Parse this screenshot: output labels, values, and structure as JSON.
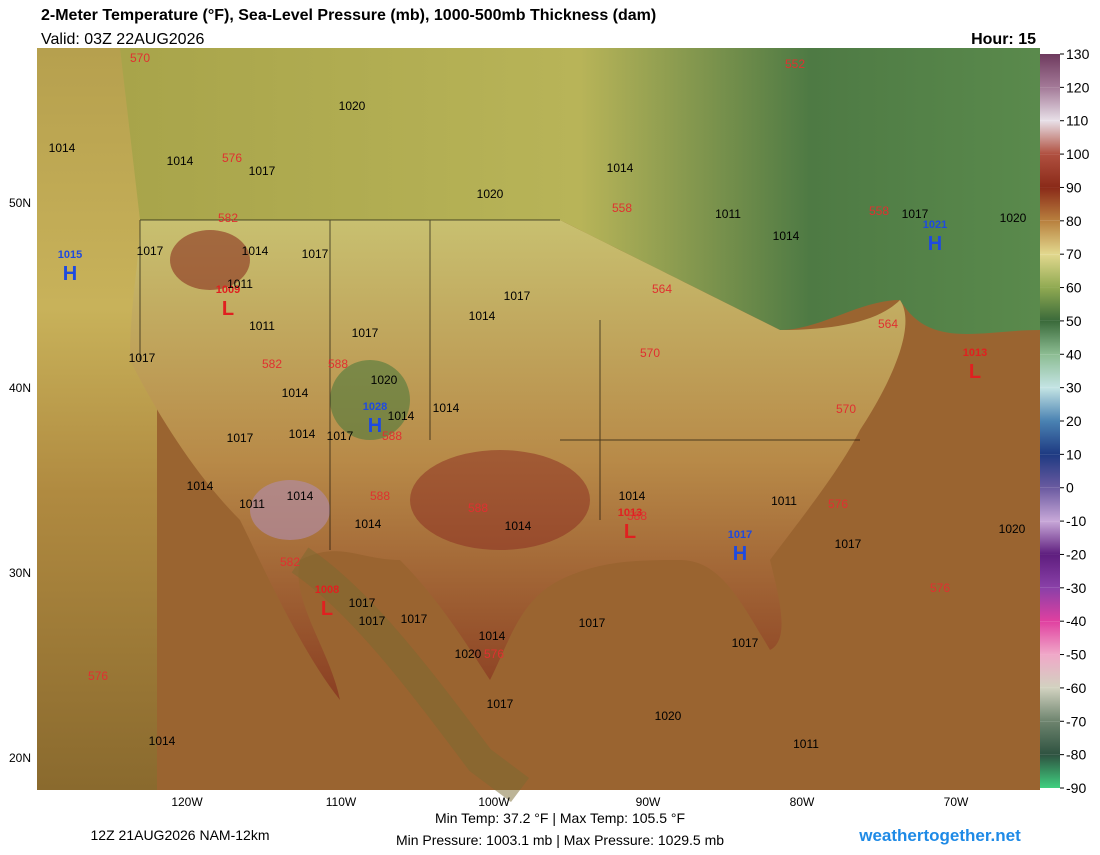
{
  "header": {
    "title": "2-Meter Temperature (°F), Sea-Level Pressure (mb), 1000-500mb Thickness (dam)",
    "valid": "Valid: 03Z 22AUG2026",
    "hour": "Hour: 15"
  },
  "axes": {
    "lon": [
      "120W",
      "110W",
      "100W",
      "90W",
      "80W",
      "70W"
    ],
    "lat": [
      "50N",
      "40N",
      "30N",
      "20N"
    ]
  },
  "colorbar": {
    "ticks": [
      130,
      120,
      110,
      100,
      90,
      80,
      70,
      60,
      50,
      40,
      30,
      20,
      10,
      0,
      -10,
      -20,
      -30,
      -40,
      -50,
      -60,
      -70,
      -80,
      -90
    ],
    "colors": [
      "#6e3a5e",
      "#a47a98",
      "#e8e0e8",
      "#b05040",
      "#8a2a18",
      "#b8803e",
      "#e2d88e",
      "#90aa52",
      "#3a6a3a",
      "#8cbc92",
      "#c4e4e4",
      "#4a82b2",
      "#1e3a82",
      "#6a5aa0",
      "#c8a8d8",
      "#5e1e7e",
      "#8a40a8",
      "#e040a0",
      "#f0a8c8",
      "#d2d2c0",
      "#6e846e",
      "#2e5240",
      "#40d080"
    ]
  },
  "centers": [
    {
      "type": "H",
      "value": "1015"
    },
    {
      "type": "L",
      "value": "1009"
    },
    {
      "type": "H",
      "value": "1028"
    },
    {
      "type": "H",
      "value": "1021"
    },
    {
      "type": "L",
      "value": "1013"
    },
    {
      "type": "L",
      "value": "1013"
    },
    {
      "type": "H",
      "value": "1017"
    },
    {
      "type": "L",
      "value": "1008"
    }
  ],
  "isobars": [
    "1020",
    "1014",
    "1014",
    "1017",
    "1020",
    "1014",
    "1011",
    "1014",
    "1017",
    "1014",
    "1011",
    "1011",
    "1017",
    "1017",
    "1014",
    "1017",
    "1017",
    "1020",
    "1014",
    "1014",
    "1014",
    "1017",
    "1014",
    "1017",
    "1014",
    "1014",
    "1014",
    "1011",
    "1014",
    "1011",
    "1014",
    "1017",
    "1017",
    "1017",
    "1017",
    "1017",
    "1014",
    "1020",
    "1017",
    "1017",
    "1020",
    "1011",
    "1014",
    "1020",
    "1017",
    "1020"
  ],
  "thickness": [
    "570",
    "576",
    "552",
    "558",
    "558",
    "564",
    "564",
    "582",
    "570",
    "576",
    "582",
    "588",
    "588",
    "588",
    "588",
    "582",
    "576",
    "576",
    "588",
    "570",
    "576"
  ],
  "footer": {
    "model": "12Z 21AUG2026 NAM-12km",
    "temp": "Min Temp: 37.2 °F | Max Temp: 105.5 °F",
    "pressure": "Min Pressure: 1003.1 mb | Max Pressure: 1029.5 mb",
    "site": "weathertogether.net"
  }
}
